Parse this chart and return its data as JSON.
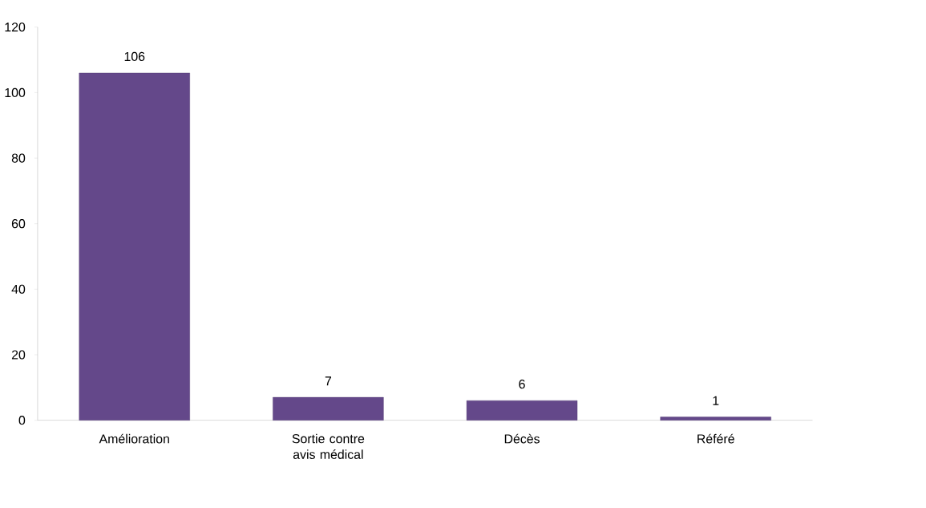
{
  "chart_data": {
    "type": "bar",
    "categories": [
      "Amélioration",
      "Sortie contre avis médical",
      "Décès",
      "Référé"
    ],
    "values": [
      106,
      7,
      6,
      1
    ],
    "color": "#64488a",
    "ylim": [
      0,
      120
    ],
    "yticks": [
      0,
      20,
      40,
      60,
      80,
      100,
      120
    ],
    "data_labels": true
  }
}
